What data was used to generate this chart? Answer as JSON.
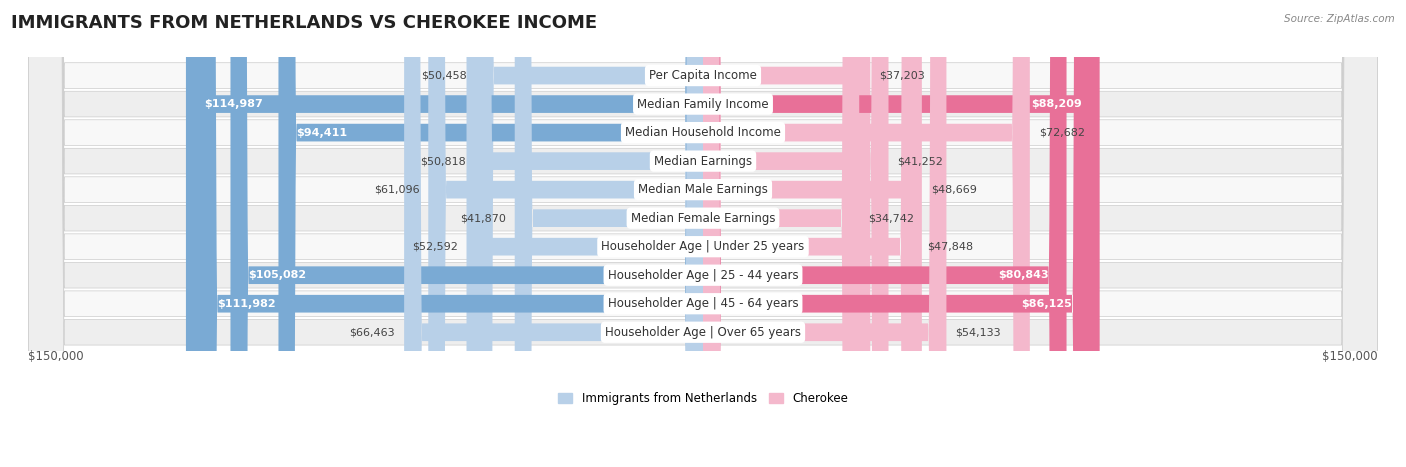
{
  "title": "IMMIGRANTS FROM NETHERLANDS VS CHEROKEE INCOME",
  "source": "Source: ZipAtlas.com",
  "categories": [
    "Per Capita Income",
    "Median Family Income",
    "Median Household Income",
    "Median Earnings",
    "Median Male Earnings",
    "Median Female Earnings",
    "Householder Age | Under 25 years",
    "Householder Age | 25 - 44 years",
    "Householder Age | 45 - 64 years",
    "Householder Age | Over 65 years"
  ],
  "netherlands_values": [
    50458,
    114987,
    94411,
    50818,
    61096,
    41870,
    52592,
    105082,
    111982,
    66463
  ],
  "cherokee_values": [
    37203,
    88209,
    72682,
    41252,
    48669,
    34742,
    47848,
    80843,
    86125,
    54133
  ],
  "netherlands_color_light": "#b8d0e8",
  "netherlands_color_dark": "#7aaad4",
  "cherokee_color_light": "#f4b8cc",
  "cherokee_color_dark": "#e87098",
  "row_bg_color_light": "#f8f8f8",
  "row_bg_color_dark": "#eeeeee",
  "max_value": 150000,
  "dark_threshold": 75000,
  "title_fontsize": 13,
  "label_fontsize": 8.5,
  "value_fontsize": 8,
  "legend_fontsize": 8.5,
  "background_color": "#ffffff"
}
